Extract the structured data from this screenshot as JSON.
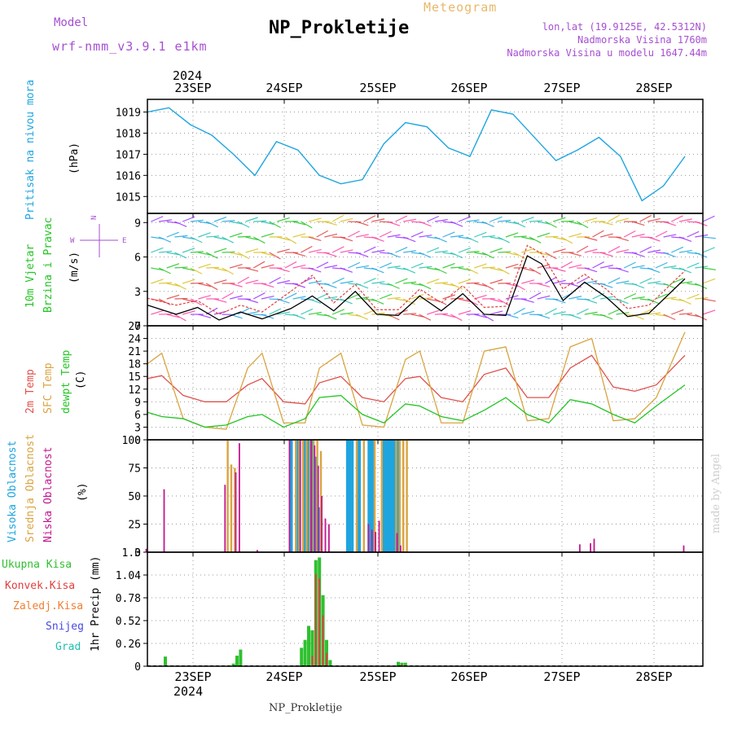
{
  "header": {
    "model_label": "Model",
    "model_name": "wrf-nmm_v3.9.1 e1km",
    "title": "NP_Prokletije",
    "meteogram": "Meteogram",
    "lonlat": "lon,lat (19.9125E, 42.5312N)",
    "altitude": "Nadmorska Visina 1760m",
    "model_altitude": "Nadmorska Visina u modelu 1647.44m"
  },
  "footer": {
    "station": "NP_Prokletije",
    "credit": "made by Angel"
  },
  "colors": {
    "pressure": "#1ea5e0",
    "wind_speed": "#000000",
    "wind_gust": "#e04040",
    "temp2m": "#e0504a",
    "sfc_temp": "#d9a441",
    "dewpoint": "#22c522",
    "cloud_high": "#1ea5e0",
    "cloud_mid": "#d9a441",
    "cloud_low": "#c2188e",
    "precip_total": "#30c030",
    "precip_conv": "#e04040"
  },
  "chart_data": [
    {
      "type": "line",
      "panel": "pressure",
      "ylabel_title": "Pritisak na nivou mora",
      "ylabel_unit": "(hPa)",
      "yticks": [
        "1015",
        "1016",
        "1017",
        "1018",
        "1019"
      ],
      "ylim": [
        1014.2,
        1019.6
      ],
      "x_date_top": "2024",
      "xticks": [
        "23SEP",
        "24SEP",
        "25SEP",
        "26SEP",
        "27SEP",
        "28SEP"
      ],
      "grid": true,
      "x": [
        0,
        6,
        12,
        18,
        24,
        30,
        36,
        42,
        48,
        54,
        60,
        66,
        72,
        78,
        84,
        90,
        96,
        102,
        108,
        114,
        120,
        126,
        132,
        138,
        144,
        150
      ],
      "values": [
        1019.0,
        1019.2,
        1018.4,
        1017.9,
        1017.0,
        1016.0,
        1017.6,
        1017.2,
        1016.0,
        1015.6,
        1015.8,
        1017.5,
        1018.5,
        1018.3,
        1017.3,
        1016.9,
        1019.1,
        1018.9,
        1017.8,
        1016.7,
        1017.2,
        1017.8,
        1016.9,
        1014.8,
        1015.5,
        1016.9
      ]
    },
    {
      "type": "line",
      "panel": "wind",
      "ylabel_title": "10m Vjetar",
      "ylabel_sub": "Brzina i Pravac",
      "ylabel_unit": "(m/s)",
      "compass": {
        "n": "N",
        "e": "E",
        "w": "W",
        "s": "S"
      },
      "yticks": [
        "0",
        "3",
        "6",
        "9"
      ],
      "ylim": [
        0,
        9.8
      ],
      "grid": true,
      "series": [
        {
          "name": "speed",
          "x": [
            0,
            8,
            14,
            20,
            26,
            32,
            40,
            46,
            52,
            58,
            64,
            70,
            76,
            82,
            88,
            94,
            100,
            106,
            110,
            116,
            122,
            128,
            134,
            140,
            150
          ],
          "values": [
            1.8,
            1.0,
            1.6,
            0.5,
            1.2,
            0.6,
            1.5,
            2.6,
            1.3,
            3.0,
            1.0,
            0.9,
            2.6,
            1.3,
            2.8,
            1.0,
            0.9,
            6.1,
            5.4,
            2.2,
            3.8,
            2.5,
            0.8,
            1.1,
            4.1
          ]
        },
        {
          "name": "gust",
          "x": [
            0,
            8,
            14,
            20,
            26,
            32,
            40,
            46,
            52,
            58,
            64,
            70,
            76,
            82,
            88,
            94,
            100,
            106,
            110,
            116,
            122,
            128,
            134,
            140,
            150
          ],
          "values": [
            2.4,
            1.8,
            2.2,
            1.0,
            1.8,
            1.2,
            3.0,
            4.4,
            2.0,
            3.6,
            1.4,
            1.4,
            3.2,
            2.0,
            3.5,
            1.6,
            1.7,
            7.0,
            6.3,
            3.2,
            4.5,
            3.2,
            1.5,
            1.8,
            4.8
          ]
        }
      ]
    },
    {
      "type": "line",
      "panel": "temperature",
      "ylabel_titles": [
        "2m Temp",
        "SFC Temp",
        "dewpt Temp"
      ],
      "ylabel_unit": "(C)",
      "yticks": [
        "0",
        "3",
        "6",
        "9",
        "12",
        "15",
        "18",
        "21",
        "24",
        "27"
      ],
      "ylim": [
        0,
        27
      ],
      "grid": true,
      "series": [
        {
          "name": "2m Temp",
          "x": [
            0,
            4,
            10,
            16,
            22,
            28,
            32,
            38,
            44,
            48,
            54,
            60,
            66,
            72,
            76,
            82,
            88,
            94,
            100,
            106,
            112,
            118,
            124,
            130,
            136,
            142,
            150
          ],
          "values": [
            14.5,
            15.2,
            10.5,
            9.0,
            9.0,
            13.0,
            14.5,
            9.0,
            8.5,
            13.5,
            15.0,
            10.0,
            9.0,
            14.5,
            15.0,
            10.0,
            9.0,
            15.5,
            17.0,
            10.0,
            10.0,
            17.0,
            20.0,
            12.5,
            11.5,
            13.0,
            20.0
          ]
        },
        {
          "name": "SFC Temp",
          "x": [
            0,
            4,
            10,
            16,
            22,
            28,
            32,
            38,
            44,
            48,
            54,
            60,
            66,
            72,
            76,
            82,
            88,
            94,
            100,
            106,
            112,
            118,
            124,
            130,
            136,
            142,
            150
          ],
          "values": [
            18.0,
            20.5,
            5.0,
            3.0,
            2.5,
            17.0,
            20.5,
            4.0,
            4.0,
            17.0,
            20.5,
            3.5,
            3.0,
            19.0,
            21.0,
            4.0,
            4.0,
            21.0,
            22.0,
            4.5,
            5.0,
            22.0,
            24.0,
            4.5,
            5.0,
            10.0,
            25.5
          ]
        },
        {
          "name": "dewpt Temp",
          "x": [
            0,
            4,
            10,
            16,
            22,
            28,
            32,
            38,
            44,
            48,
            54,
            60,
            66,
            72,
            76,
            82,
            88,
            94,
            100,
            106,
            112,
            118,
            124,
            130,
            136,
            142,
            150
          ],
          "values": [
            6.5,
            5.5,
            5.0,
            3.0,
            3.5,
            5.5,
            6.0,
            3.0,
            5.0,
            10.0,
            10.5,
            6.0,
            4.0,
            8.5,
            8.0,
            5.5,
            4.5,
            7.0,
            10.0,
            6.0,
            4.0,
            9.5,
            8.5,
            6.0,
            4.0,
            8.0,
            13.0
          ]
        }
      ]
    },
    {
      "type": "bar",
      "panel": "clouds",
      "ylabel_titles": [
        "Visoka Oblacnost",
        "Srednja Oblacnost",
        "Niska Oblacnost"
      ],
      "ylabel_unit": "(%)",
      "yticks": [
        "0",
        "25",
        "50",
        "75",
        "100"
      ],
      "ylim": [
        0,
        100
      ],
      "grid": true,
      "series": [
        {
          "name": "Visoka Oblacnost",
          "x": [
            40,
            42,
            44,
            45,
            46,
            47,
            48,
            56,
            57,
            59,
            62,
            63,
            66,
            67,
            68,
            69,
            70
          ],
          "values": [
            100,
            100,
            100,
            100,
            100,
            85,
            40,
            100,
            100,
            100,
            100,
            100,
            100,
            100,
            100,
            100,
            100
          ]
        },
        {
          "name": "Srednja Oblacnost",
          "x": [
            22,
            23,
            24,
            41,
            42,
            43,
            44,
            45,
            46,
            47,
            48,
            58,
            60,
            63,
            65,
            69,
            70,
            71,
            72
          ],
          "values": [
            100,
            78,
            75,
            100,
            100,
            100,
            100,
            100,
            100,
            100,
            90,
            100,
            100,
            100,
            100,
            100,
            100,
            100,
            100
          ]
        },
        {
          "name": "Niska Oblacnost",
          "x": [
            0,
            5,
            22,
            25,
            26,
            31,
            40,
            43,
            46,
            47,
            48,
            49,
            50,
            51,
            62,
            63,
            64,
            65,
            70,
            71,
            121,
            124,
            125,
            150
          ],
          "values": [
            3,
            56,
            60,
            71,
            97,
            2,
            100,
            100,
            100,
            95,
            77,
            50,
            30,
            25,
            25,
            20,
            18,
            28,
            17,
            6,
            7,
            8,
            12,
            6
          ]
        }
      ]
    },
    {
      "type": "bar",
      "panel": "precip",
      "ylabel_titles": [
        "Ukupna Kisa",
        "Konvek.Kisa",
        "Zaledj.Kisa",
        "Snijeg",
        "Grad"
      ],
      "ylabel_unit": "1hr Precip (mm)",
      "yticks": [
        "0",
        "0.26",
        "0.52",
        "0.78",
        "1.04",
        "1.3"
      ],
      "ylim": [
        0,
        1.3
      ],
      "grid": true,
      "xticks": [
        "23SEP",
        "24SEP",
        "25SEP",
        "26SEP",
        "27SEP",
        "28SEP"
      ],
      "x_date_bottom": "2024",
      "series": [
        {
          "name": "Ukupna Kisa",
          "x": [
            5,
            24,
            25,
            26,
            43,
            44,
            45,
            46,
            47,
            48,
            49,
            50,
            51,
            70,
            71,
            72
          ],
          "values": [
            0.11,
            0.03,
            0.12,
            0.19,
            0.21,
            0.3,
            0.46,
            0.41,
            1.21,
            1.24,
            0.81,
            0.3,
            0.07,
            0.05,
            0.04,
            0.04
          ]
        },
        {
          "name": "Konvek.Kisa",
          "x": [
            46,
            47,
            48,
            49,
            50,
            71
          ],
          "values": [
            0.12,
            1.05,
            1.0,
            0.58,
            0.15,
            0.02
          ]
        }
      ]
    }
  ]
}
